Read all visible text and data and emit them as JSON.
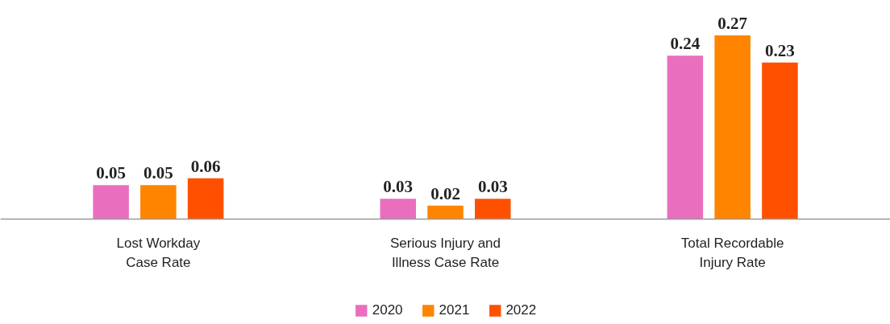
{
  "chart_data": {
    "type": "bar",
    "categories": [
      "Lost Workday Case Rate",
      "Serious Injury and Illness Case Rate",
      "Total Recordable Injury Rate"
    ],
    "series": [
      {
        "name": "2020",
        "color": "#e96fbe",
        "values": [
          0.05,
          0.03,
          0.24
        ]
      },
      {
        "name": "2021",
        "color": "#ff8400",
        "values": [
          0.05,
          0.02,
          0.27
        ]
      },
      {
        "name": "2022",
        "color": "#ff5000",
        "values": [
          0.06,
          0.03,
          0.23
        ]
      }
    ],
    "data_labels": true,
    "legend": "bottom",
    "grid": false
  }
}
